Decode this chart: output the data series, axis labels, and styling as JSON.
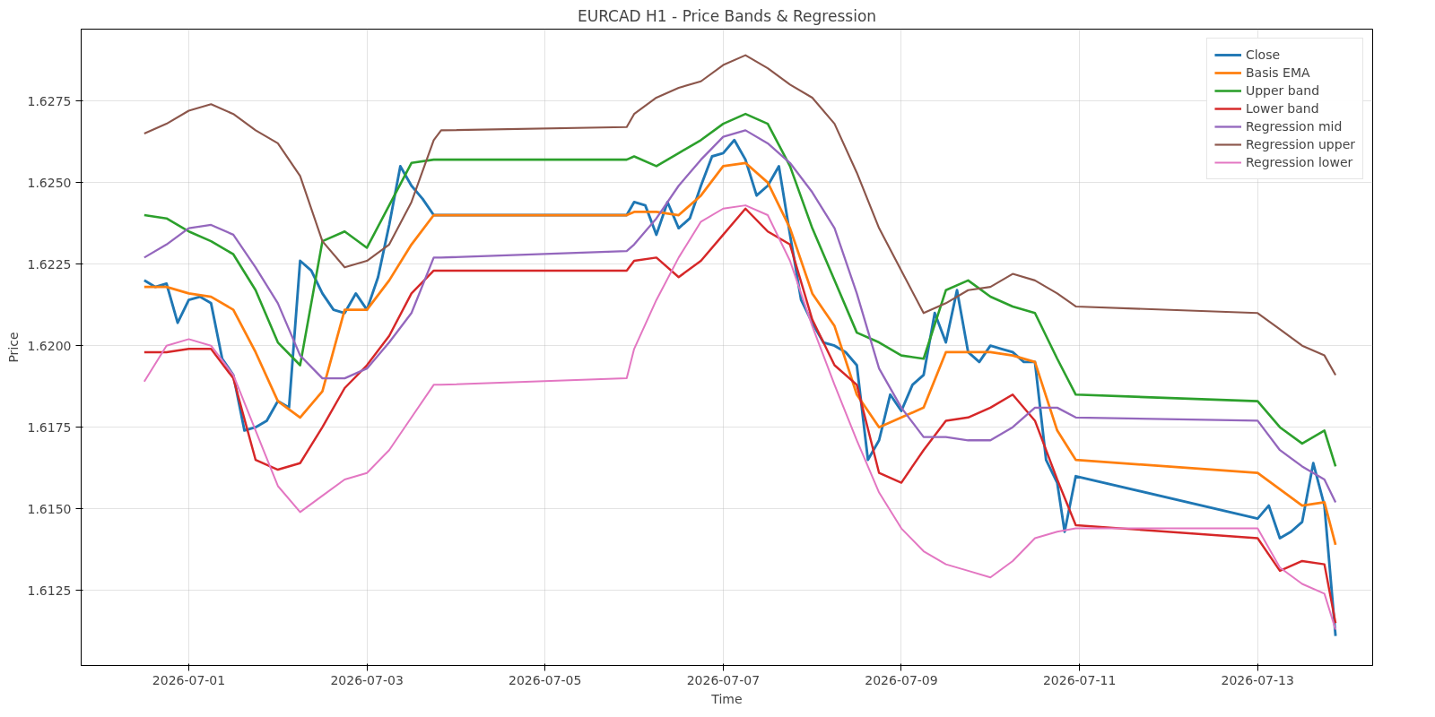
{
  "chart_data": {
    "type": "line",
    "title": "EURCAD H1 - Price Bands & Regression",
    "xlabel": "Time",
    "ylabel": "Price",
    "x": [
      "2026-06-30T12:00",
      "2026-06-30T18:00",
      "2026-07-01T00:00",
      "2026-07-01T06:00",
      "2026-07-01T12:00",
      "2026-07-01T18:00",
      "2026-07-02T00:00",
      "2026-07-02T06:00",
      "2026-07-02T12:00",
      "2026-07-02T18:00",
      "2026-07-03T00:00",
      "2026-07-03T06:00",
      "2026-07-03T12:00",
      "2026-07-03T18:00",
      "2026-07-03T20:00",
      "2026-07-05T22:00",
      "2026-07-06T00:00",
      "2026-07-06T06:00",
      "2026-07-06T12:00",
      "2026-07-06T18:00",
      "2026-07-07T00:00",
      "2026-07-07T06:00",
      "2026-07-07T12:00",
      "2026-07-07T18:00",
      "2026-07-08T00:00",
      "2026-07-08T06:00",
      "2026-07-08T12:00",
      "2026-07-08T18:00",
      "2026-07-09T00:00",
      "2026-07-09T06:00",
      "2026-07-09T12:00",
      "2026-07-09T18:00",
      "2026-07-10T00:00",
      "2026-07-10T06:00",
      "2026-07-10T12:00",
      "2026-07-10T18:00",
      "2026-07-10T23:00",
      "2026-07-13T00:00",
      "2026-07-13T06:00",
      "2026-07-13T12:00",
      "2026-07-13T18:00",
      "2026-07-13T21:00"
    ],
    "series": [
      {
        "name": "Close",
        "color": "#1f77b4",
        "x": [
          "2026-06-30T12:00",
          "2026-06-30T15:00",
          "2026-06-30T18:00",
          "2026-06-30T21:00",
          "2026-07-01T00:00",
          "2026-07-01T03:00",
          "2026-07-01T06:00",
          "2026-07-01T09:00",
          "2026-07-01T12:00",
          "2026-07-01T15:00",
          "2026-07-01T18:00",
          "2026-07-01T21:00",
          "2026-07-02T00:00",
          "2026-07-02T03:00",
          "2026-07-02T06:00",
          "2026-07-02T09:00",
          "2026-07-02T12:00",
          "2026-07-02T15:00",
          "2026-07-02T18:00",
          "2026-07-02T21:00",
          "2026-07-03T00:00",
          "2026-07-03T03:00",
          "2026-07-03T06:00",
          "2026-07-03T09:00",
          "2026-07-03T12:00",
          "2026-07-03T15:00",
          "2026-07-03T18:00",
          "2026-07-03T20:00",
          "2026-07-05T22:00",
          "2026-07-06T00:00",
          "2026-07-06T03:00",
          "2026-07-06T06:00",
          "2026-07-06T09:00",
          "2026-07-06T12:00",
          "2026-07-06T15:00",
          "2026-07-06T18:00",
          "2026-07-06T21:00",
          "2026-07-07T00:00",
          "2026-07-07T03:00",
          "2026-07-07T06:00",
          "2026-07-07T09:00",
          "2026-07-07T12:00",
          "2026-07-07T15:00",
          "2026-07-07T18:00",
          "2026-07-07T21:00",
          "2026-07-08T00:00",
          "2026-07-08T03:00",
          "2026-07-08T06:00",
          "2026-07-08T09:00",
          "2026-07-08T12:00",
          "2026-07-08T15:00",
          "2026-07-08T18:00",
          "2026-07-08T21:00",
          "2026-07-09T00:00",
          "2026-07-09T03:00",
          "2026-07-09T06:00",
          "2026-07-09T09:00",
          "2026-07-09T12:00",
          "2026-07-09T15:00",
          "2026-07-09T18:00",
          "2026-07-09T21:00",
          "2026-07-10T00:00",
          "2026-07-10T03:00",
          "2026-07-10T06:00",
          "2026-07-10T09:00",
          "2026-07-10T12:00",
          "2026-07-10T15:00",
          "2026-07-10T18:00",
          "2026-07-10T20:00",
          "2026-07-10T23:00",
          "2026-07-13T00:00",
          "2026-07-13T03:00",
          "2026-07-13T06:00",
          "2026-07-13T09:00",
          "2026-07-13T12:00",
          "2026-07-13T15:00",
          "2026-07-13T18:00",
          "2026-07-13T21:00"
        ],
        "values": [
          1.622,
          1.6218,
          1.6219,
          1.6207,
          1.6214,
          1.6215,
          1.6213,
          1.6196,
          1.6191,
          1.6174,
          1.6175,
          1.6177,
          1.6183,
          1.6181,
          1.6226,
          1.6223,
          1.6216,
          1.6211,
          1.621,
          1.6216,
          1.6211,
          1.6221,
          1.6237,
          1.6255,
          1.6249,
          1.6245,
          1.624,
          1.624,
          1.624,
          1.6244,
          1.6243,
          1.6234,
          1.6244,
          1.6236,
          1.6239,
          1.6249,
          1.6258,
          1.6259,
          1.6263,
          1.6257,
          1.6246,
          1.6249,
          1.6255,
          1.6234,
          1.6214,
          1.6207,
          1.6201,
          1.62,
          1.6198,
          1.6194,
          1.6165,
          1.6171,
          1.6185,
          1.618,
          1.6188,
          1.6191,
          1.621,
          1.6201,
          1.6217,
          1.6198,
          1.6195,
          1.62,
          1.6199,
          1.6198,
          1.6195,
          1.6195,
          1.6165,
          1.6158,
          1.6143,
          1.616,
          1.6147,
          1.6151,
          1.6141,
          1.6143,
          1.6146,
          1.6164,
          1.6151,
          1.6111
        ]
      },
      {
        "name": "Basis EMA",
        "color": "#ff7f0e",
        "values": [
          1.6218,
          1.6218,
          1.6216,
          1.6215,
          1.6211,
          1.6198,
          1.6183,
          1.6178,
          1.6186,
          1.6211,
          1.6211,
          1.622,
          1.6231,
          1.624,
          1.624,
          1.624,
          1.6241,
          1.6241,
          1.624,
          1.6246,
          1.6255,
          1.6256,
          1.625,
          1.6236,
          1.6216,
          1.6206,
          1.6185,
          1.6175,
          1.6178,
          1.6181,
          1.6198,
          1.6198,
          1.6198,
          1.6197,
          1.6195,
          1.6174,
          1.6165,
          1.6161,
          1.6156,
          1.6151,
          1.6152,
          1.6139
        ]
      },
      {
        "name": "Upper band",
        "color": "#2ca02c",
        "values": [
          1.624,
          1.6239,
          1.6235,
          1.6232,
          1.6228,
          1.6217,
          1.6201,
          1.6194,
          1.6232,
          1.6235,
          1.623,
          1.6243,
          1.6256,
          1.6257,
          1.6257,
          1.6257,
          1.6258,
          1.6255,
          1.6259,
          1.6263,
          1.6268,
          1.6271,
          1.6268,
          1.6255,
          1.6236,
          1.622,
          1.6204,
          1.6201,
          1.6197,
          1.6196,
          1.6217,
          1.622,
          1.6215,
          1.6212,
          1.621,
          1.6196,
          1.6185,
          1.6183,
          1.6175,
          1.617,
          1.6174,
          1.6163
        ]
      },
      {
        "name": "Lower band",
        "color": "#d62728",
        "values": [
          1.6198,
          1.6198,
          1.6199,
          1.6199,
          1.619,
          1.6165,
          1.6162,
          1.6164,
          1.6175,
          1.6187,
          1.6194,
          1.6203,
          1.6216,
          1.6223,
          1.6223,
          1.6223,
          1.6226,
          1.6227,
          1.6221,
          1.6226,
          1.6234,
          1.6242,
          1.6235,
          1.6231,
          1.6208,
          1.6194,
          1.6188,
          1.6161,
          1.6158,
          1.6168,
          1.6177,
          1.6178,
          1.6181,
          1.6185,
          1.6177,
          1.6159,
          1.6145,
          1.6141,
          1.6131,
          1.6134,
          1.6133,
          1.6115
        ]
      },
      {
        "name": "Regression mid",
        "color": "#9467bd",
        "values": [
          1.6227,
          1.6231,
          1.6236,
          1.6237,
          1.6234,
          1.6224,
          1.6213,
          1.6197,
          1.619,
          1.619,
          1.6193,
          1.6201,
          1.621,
          1.6227,
          1.6227,
          1.6229,
          1.6231,
          1.6239,
          1.6249,
          1.6257,
          1.6264,
          1.6266,
          1.6262,
          1.6256,
          1.6247,
          1.6236,
          1.6216,
          1.6193,
          1.6181,
          1.6172,
          1.6172,
          1.6171,
          1.6171,
          1.6175,
          1.6181,
          1.6181,
          1.6178,
          1.6177,
          1.6168,
          1.6163,
          1.6159,
          1.6152
        ]
      },
      {
        "name": "Regression upper",
        "color": "#8c564b",
        "values": [
          1.6265,
          1.6268,
          1.6272,
          1.6274,
          1.6271,
          1.6266,
          1.6262,
          1.6252,
          1.6232,
          1.6224,
          1.6226,
          1.6231,
          1.6244,
          1.6263,
          1.6266,
          1.6267,
          1.6271,
          1.6276,
          1.6279,
          1.6281,
          1.6286,
          1.6289,
          1.6285,
          1.628,
          1.6276,
          1.6268,
          1.6253,
          1.6236,
          1.6223,
          1.621,
          1.6213,
          1.6217,
          1.6218,
          1.6222,
          1.622,
          1.6216,
          1.6212,
          1.621,
          1.6205,
          1.62,
          1.6197,
          1.6191
        ]
      },
      {
        "name": "Regression lower",
        "color": "#e377c2",
        "values": [
          1.6189,
          1.62,
          1.6202,
          1.62,
          1.6191,
          1.6174,
          1.6157,
          1.6149,
          1.6154,
          1.6159,
          1.6161,
          1.6168,
          1.6178,
          1.6188,
          1.6188,
          1.619,
          1.6199,
          1.6214,
          1.6227,
          1.6238,
          1.6242,
          1.6243,
          1.624,
          1.6226,
          1.6206,
          1.6188,
          1.6171,
          1.6155,
          1.6144,
          1.6137,
          1.6133,
          1.6131,
          1.6129,
          1.6134,
          1.6141,
          1.6143,
          1.6144,
          1.6144,
          1.6132,
          1.6127,
          1.6124,
          1.6113
        ]
      }
    ],
    "xlim": [
      "2026-06-29T19:00",
      "2026-07-14T07:00"
    ],
    "xticks": [
      "2026-07-01",
      "2026-07-03",
      "2026-07-05",
      "2026-07-07",
      "2026-07-09",
      "2026-07-11",
      "2026-07-13"
    ],
    "ylim": [
      1.6102,
      1.6297
    ],
    "yticks": [
      1.6125,
      {
        "value": 1.615,
        "label": "1.6150"
      },
      1.6175,
      {
        "value": 1.62,
        "label": "1.6200"
      },
      1.6225,
      {
        "value": 1.625,
        "label": "1.6250"
      },
      1.6275
    ],
    "grid": true,
    "legend": "top right",
    "marker": "none",
    "line_style": "solid"
  }
}
